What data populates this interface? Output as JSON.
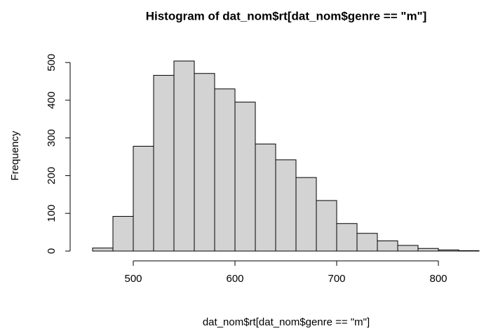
{
  "chart_data": {
    "type": "histogram",
    "title": "Histogram of dat_nom$rt[dat_nom$genre == \"m\"]",
    "x_label": "dat_nom$rt[dat_nom$genre == \"m\"]",
    "y_label": "Frequency",
    "bins": [
      460,
      480,
      500,
      520,
      540,
      560,
      580,
      600,
      620,
      640,
      660,
      680,
      700,
      720,
      740,
      760,
      780,
      800,
      820,
      840
    ],
    "values": [
      8,
      92,
      278,
      466,
      504,
      471,
      430,
      395,
      284,
      242,
      195,
      134,
      73,
      47,
      27,
      15,
      7,
      3,
      1
    ],
    "color": "#d3d3d3",
    "xlim": [
      460,
      840
    ],
    "xticks": [
      500,
      600,
      700,
      800
    ],
    "ylim": [
      0,
      504
    ],
    "yticks": [
      0,
      100,
      200,
      300,
      400,
      500
    ]
  }
}
